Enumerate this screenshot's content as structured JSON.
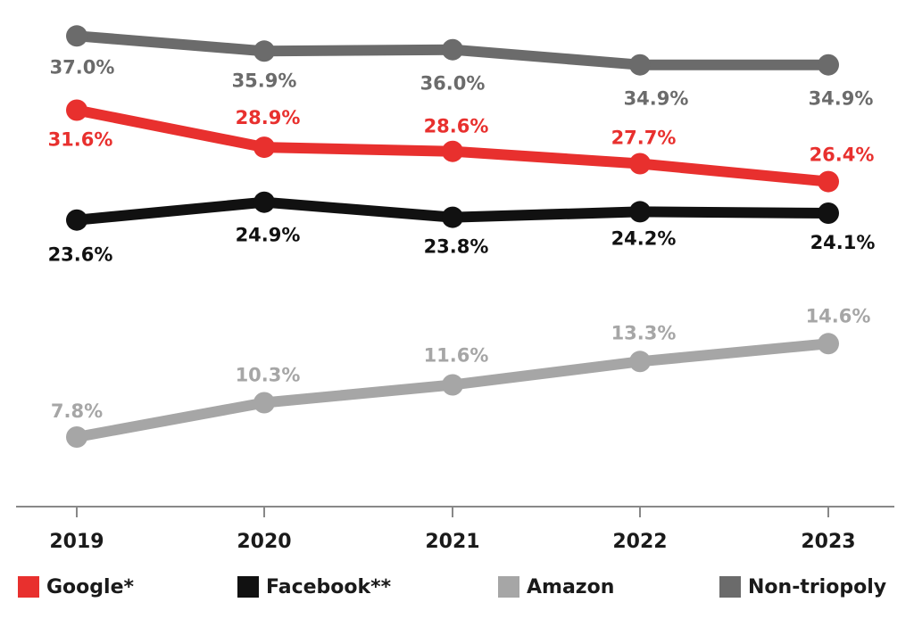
{
  "chart_data": {
    "type": "line",
    "x": [
      "2019",
      "2020",
      "2021",
      "2022",
      "2023"
    ],
    "ylim": [
      0,
      40
    ],
    "unit": "%",
    "grid": false,
    "legend_placement": "bottom",
    "series": [
      {
        "name": "Non-triopoly",
        "color": "#6b6b6b",
        "values": [
          37.0,
          35.9,
          36.0,
          34.9,
          34.9
        ],
        "labels": [
          "37.0%",
          "35.9%",
          "36.0%",
          "34.9%",
          "34.9%"
        ]
      },
      {
        "name": "Google*",
        "color": "#e8302e",
        "values": [
          31.6,
          28.9,
          28.6,
          27.7,
          26.4
        ],
        "labels": [
          "31.6%",
          "28.9%",
          "28.6%",
          "27.7%",
          "26.4%"
        ]
      },
      {
        "name": "Facebook**",
        "color": "#111111",
        "values": [
          23.6,
          24.9,
          23.8,
          24.2,
          24.1
        ],
        "labels": [
          "23.6%",
          "24.9%",
          "23.8%",
          "24.2%",
          "24.1%"
        ]
      },
      {
        "name": "Amazon",
        "color": "#a6a6a6",
        "values": [
          7.8,
          10.3,
          11.6,
          13.3,
          14.6
        ],
        "labels": [
          "7.8%",
          "10.3%",
          "11.6%",
          "13.3%",
          "14.6%"
        ]
      }
    ]
  },
  "legend": [
    {
      "label": "Google*",
      "color": "#e8302e"
    },
    {
      "label": "Facebook**",
      "color": "#111111"
    },
    {
      "label": "Amazon",
      "color": "#a6a6a6"
    },
    {
      "label": "Non-triopoly",
      "color": "#6b6b6b"
    }
  ]
}
